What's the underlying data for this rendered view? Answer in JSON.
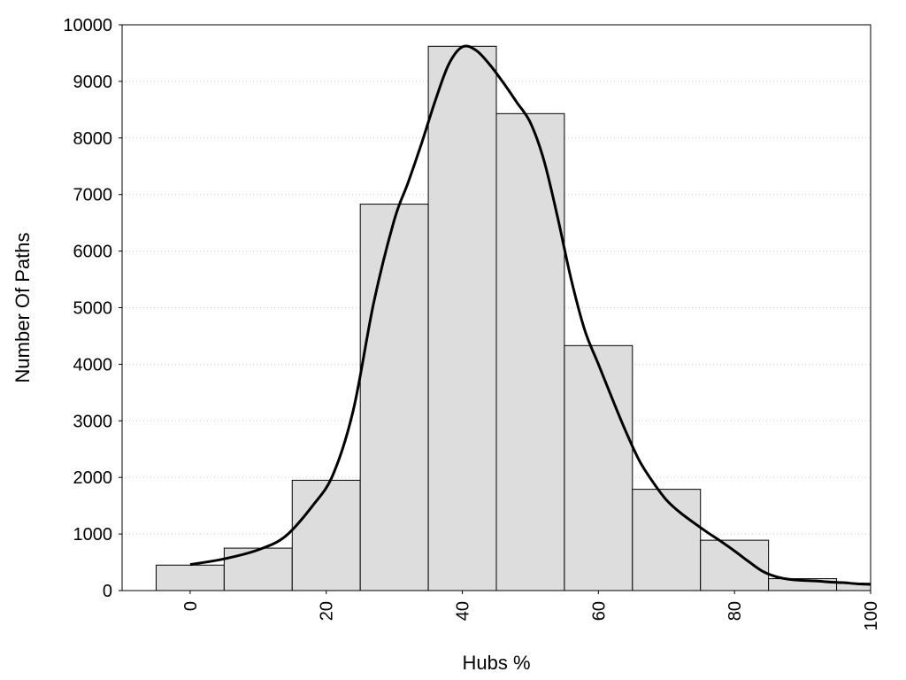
{
  "chart_data": {
    "type": "bar",
    "title": "",
    "xlabel": "Hubs %",
    "ylabel": "Number Of Paths",
    "xlim": [
      -10,
      100
    ],
    "ylim": [
      0,
      10000
    ],
    "grid": "horizontal dotted",
    "x_ticks": [
      "0",
      "20",
      "40",
      "60",
      "80",
      "100"
    ],
    "y_ticks": [
      "0",
      "1000",
      "2000",
      "3000",
      "4000",
      "5000",
      "6000",
      "7000",
      "8000",
      "9000",
      "10000"
    ],
    "bins": [
      {
        "from": -5,
        "to": 5,
        "value": 450
      },
      {
        "from": 5,
        "to": 15,
        "value": 750
      },
      {
        "from": 15,
        "to": 25,
        "value": 1950
      },
      {
        "from": 25,
        "to": 35,
        "value": 6830
      },
      {
        "from": 35,
        "to": 45,
        "value": 9620
      },
      {
        "from": 45,
        "to": 55,
        "value": 8430
      },
      {
        "from": 55,
        "to": 65,
        "value": 4330
      },
      {
        "from": 65,
        "to": 75,
        "value": 1790
      },
      {
        "from": 75,
        "to": 85,
        "value": 890
      },
      {
        "from": 85,
        "to": 95,
        "value": 210
      },
      {
        "from": 95,
        "to": 100,
        "value": 130
      }
    ],
    "curve": {
      "x": [
        0,
        5,
        10,
        14,
        18,
        21,
        24,
        27,
        30,
        32,
        34,
        36,
        38,
        40,
        42,
        44,
        46,
        48,
        50,
        52,
        54,
        56,
        58,
        60,
        62,
        64,
        66,
        68,
        70,
        72,
        74,
        76,
        78,
        80,
        82,
        84,
        86,
        88,
        90,
        92,
        94,
        96,
        98,
        100
      ],
      "y": [
        460,
        560,
        720,
        960,
        1500,
        2050,
        3200,
        5100,
        6550,
        7200,
        7900,
        8650,
        9300,
        9610,
        9550,
        9300,
        8980,
        8630,
        8270,
        7600,
        6600,
        5500,
        4600,
        4000,
        3400,
        2820,
        2300,
        1920,
        1600,
        1380,
        1200,
        1030,
        870,
        700,
        520,
        350,
        250,
        200,
        180,
        170,
        150,
        140,
        120,
        110
      ]
    },
    "colors": {
      "bar_fill": "#dddddd",
      "bar_stroke": "#000000",
      "curve": "#000000",
      "grid": "#cccccc"
    }
  }
}
